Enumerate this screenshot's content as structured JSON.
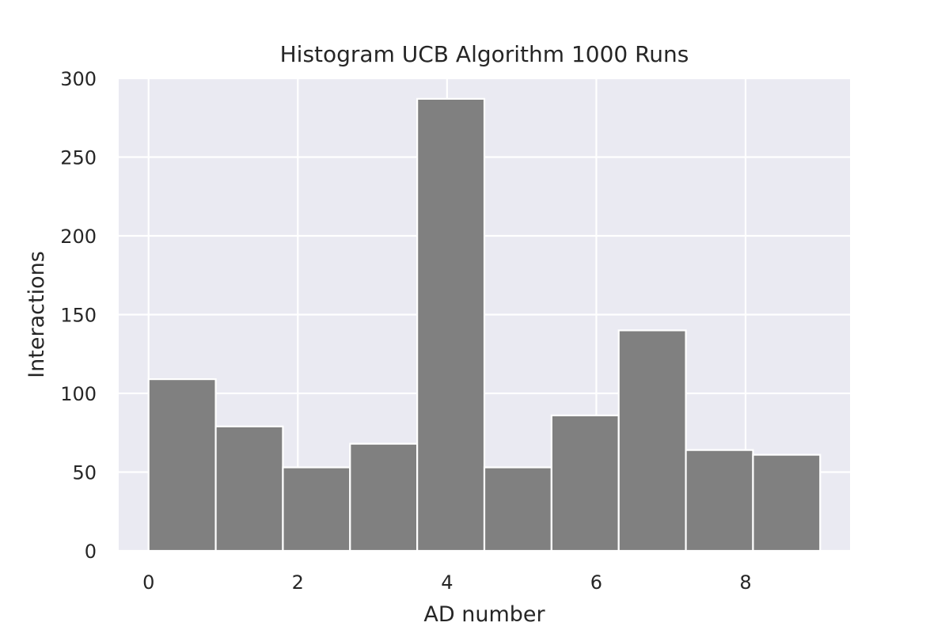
{
  "chart_data": {
    "type": "bar",
    "title": "Histogram UCB Algorithm 1000 Runs",
    "xlabel": "AD number",
    "ylabel": "Interactions",
    "x_range": [
      -0.4,
      9.4
    ],
    "ylim": [
      0,
      300
    ],
    "x_ticks": [
      0,
      2,
      4,
      6,
      8
    ],
    "y_ticks": [
      0,
      50,
      100,
      150,
      200,
      250,
      300
    ],
    "bins": [
      {
        "start": 0.0,
        "end": 0.9,
        "value": 109
      },
      {
        "start": 0.9,
        "end": 1.8,
        "value": 79
      },
      {
        "start": 1.8,
        "end": 2.7,
        "value": 53
      },
      {
        "start": 2.7,
        "end": 3.6,
        "value": 68
      },
      {
        "start": 3.6,
        "end": 4.5,
        "value": 287
      },
      {
        "start": 4.5,
        "end": 5.4,
        "value": 53
      },
      {
        "start": 5.4,
        "end": 6.3,
        "value": 86
      },
      {
        "start": 6.3,
        "end": 7.2,
        "value": 140
      },
      {
        "start": 7.2,
        "end": 8.1,
        "value": 64
      },
      {
        "start": 8.1,
        "end": 9.0,
        "value": 61
      }
    ],
    "grid": true,
    "colors": {
      "background": "#eaeaf2",
      "bar": "#808080",
      "bar_edge": "#ffffff",
      "grid": "#ffffff",
      "text": "#262626"
    }
  }
}
